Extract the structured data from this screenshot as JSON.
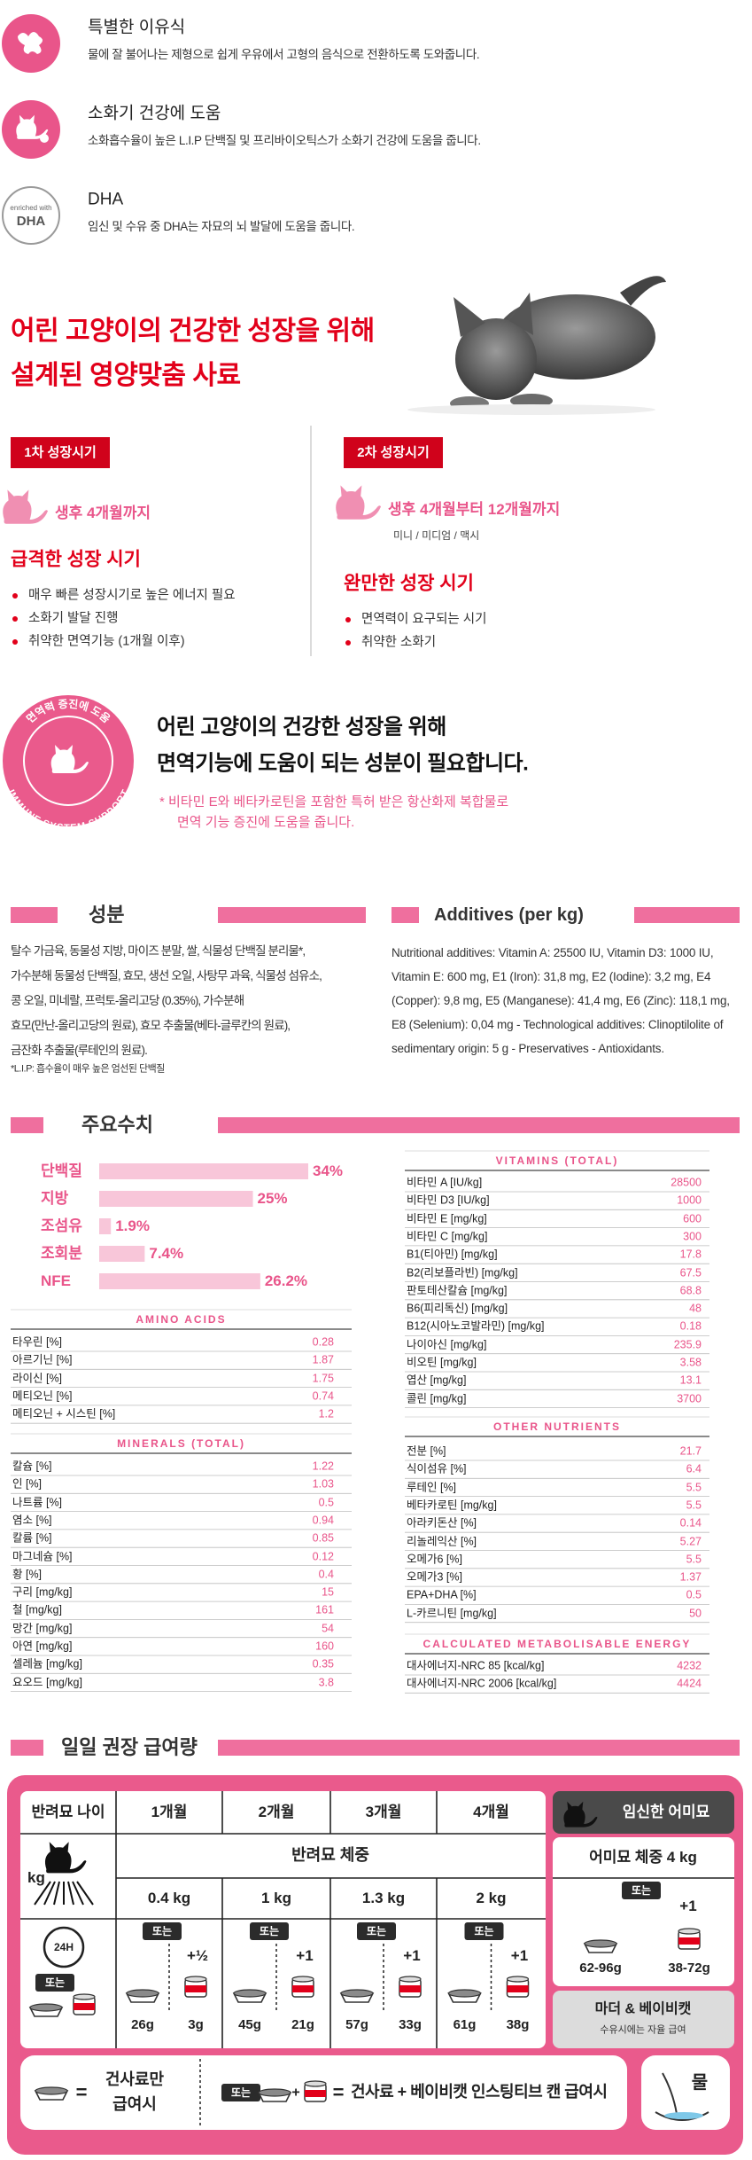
{
  "features": [
    {
      "title": "특별한 이유식",
      "description": "물에 잘 불어나는 제형으로 쉽게 우유에서 고형의 음식으로 전환하도록 도와줍니다."
    },
    {
      "title": "소화기 건강에 도움",
      "description": "소화흡수율이 높은 L.I.P 단백질 및 프리바이오틱스가 소화기 건강에 도움을 줍니다."
    },
    {
      "title": "DHA",
      "description": "임신 및 수유 중 DHA는 자묘의 뇌 발달에 도움을 줍니다.",
      "icon_caption": "enriched with",
      "icon_label": "DHA"
    }
  ],
  "growth": {
    "title_lines": [
      "어린 고양이의 건강한 성장을 위해",
      "설계된 영양맞춤 사료"
    ],
    "stages": [
      {
        "badge": "1차 성장시기",
        "age": "생후 4개월까지",
        "title": "급격한 성장 시기",
        "bullets": [
          "매우 빠른 성장시기로 높은 에너지 필요",
          "소화기 발달 진행",
          "취약한 면역기능 (1개월 이후)"
        ]
      },
      {
        "badge": "2차 성장시기",
        "age": "생후 4개월부터 12개월까지",
        "sub": "미니 / 미디엄 / 맥시",
        "title": "완만한 성장 시기",
        "bullets": [
          "면역력이 요구되는 시기",
          "취약한 소화기"
        ]
      }
    ]
  },
  "immune": {
    "badge_top": "면역력 증진에 도움",
    "badge_bottom": "IMMUNE SYSTEM SUPPORT",
    "heading_lines": [
      "어린 고양이의 건강한 성장을 위해",
      "면역기능에 도움이 되는 성분이 필요합니다."
    ],
    "note_lines": [
      "* 비타민 E와 베타카로틴을 포함한 특허 받은 항산화제 복합물로",
      "면역 기능 증진에 도움을 줍니다."
    ]
  },
  "ingredients": {
    "title": "성분",
    "lines": [
      "탈수 가금육, 동물성 지방, 마이즈 분말, 쌀, 식물성 단백질 분리물*,",
      "가수분해 동물성 단백질, 효모, 생선 오일, 사탕무 과육, 식물성 섬유소,",
      "콩 오일, 미네랄, 프럭토-올리고당 (0.35%), 가수분해",
      "효모(만난-올리고당의 원료), 효모 추출물(베타-글루칸의 원료),",
      "금잔화 추출물(루테인의 원료)."
    ],
    "footnote": "*L.I.P: 흡수율이 매우 높은 엄선된 단백질"
  },
  "additives": {
    "title": "Additives (per kg)",
    "text": "Nutritional additives: Vitamin A: 25500 IU, Vitamin D3: 1000 IU, Vitamin E: 600 mg, E1 (Iron): 31,8 mg, E2 (Iodine): 3,2 mg, E4 (Copper): 9,8 mg, E5 (Manganese): 41,4 mg, E6 (Zinc): 118,1 mg, E8 (Selenium): 0,04 mg - Technological additives: Clinoptilolite of sedimentary origin: 5 g - Preservatives - Antioxidants."
  },
  "analysis": {
    "title": "주요수치",
    "main": [
      {
        "name": "단백질",
        "value": 34,
        "label": "34%"
      },
      {
        "name": "지방",
        "value": 25,
        "label": "25%"
      },
      {
        "name": "조섬유",
        "value": 1.9,
        "label": "1.9%"
      },
      {
        "name": "조회분",
        "value": 7.4,
        "label": "7.4%"
      },
      {
        "name": "NFE",
        "value": 26.2,
        "label": "26.2%"
      }
    ],
    "tables": [
      {
        "title": "AMINO ACIDS",
        "rows": [
          [
            "타우린 [%]",
            "0.28"
          ],
          [
            "아르기닌 [%]",
            "1.87"
          ],
          [
            "라이신 [%]",
            "1.75"
          ],
          [
            "메티오닌 [%]",
            "0.74"
          ],
          [
            "메티오닌 + 시스틴 [%]",
            "1.2"
          ]
        ]
      },
      {
        "title": "MINERALS (TOTAL)",
        "rows": [
          [
            "칼슘 [%]",
            "1.22"
          ],
          [
            "인 [%]",
            "1.03"
          ],
          [
            "나트륨 [%]",
            "0.5"
          ],
          [
            "염소 [%]",
            "0.94"
          ],
          [
            "칼륨 [%]",
            "0.85"
          ],
          [
            "마그네슘 [%]",
            "0.12"
          ],
          [
            "황 [%]",
            "0.4"
          ],
          [
            "구리 [mg/kg]",
            "15"
          ],
          [
            "철 [mg/kg]",
            "161"
          ],
          [
            "망간 [mg/kg]",
            "54"
          ],
          [
            "아연 [mg/kg]",
            "160"
          ],
          [
            "셀레늄 [mg/kg]",
            "0.35"
          ],
          [
            "요오드 [mg/kg]",
            "3.8"
          ]
        ]
      },
      {
        "title": "VITAMINS (TOTAL)",
        "rows": [
          [
            "비타민 A [IU/kg]",
            "28500"
          ],
          [
            "비타민 D3 [IU/kg]",
            "1000"
          ],
          [
            "비타민 E [mg/kg]",
            "600"
          ],
          [
            "비타민 C [mg/kg]",
            "300"
          ],
          [
            "B1(티아민) [mg/kg]",
            "17.8"
          ],
          [
            "B2(리보플라빈) [mg/kg]",
            "67.5"
          ],
          [
            "판토테산칼슘 [mg/kg]",
            "68.8"
          ],
          [
            "B6(피리독신) [mg/kg]",
            "48"
          ],
          [
            "B12(시아노코발라민) [mg/kg]",
            "0.18"
          ],
          [
            "나이아신 [mg/kg]",
            "235.9"
          ],
          [
            "비오틴 [mg/kg]",
            "3.58"
          ],
          [
            "엽산 [mg/kg]",
            "13.1"
          ],
          [
            "콜린 [mg/kg]",
            "3700"
          ]
        ]
      },
      {
        "title": "OTHER NUTRIENTS",
        "rows": [
          [
            "전분 [%]",
            "21.7"
          ],
          [
            "식이섬유 [%]",
            "6.4"
          ],
          [
            "루테인 [%]",
            "5.5"
          ],
          [
            "베타카로틴 [mg/kg]",
            "5.5"
          ],
          [
            "아라키돈산 [%]",
            "0.14"
          ],
          [
            "리놀레익산 [%]",
            "5.27"
          ],
          [
            "오메가6 [%]",
            "5.5"
          ],
          [
            "오메가3 [%]",
            "1.37"
          ],
          [
            "EPA+DHA [%]",
            "0.5"
          ],
          [
            "L-카르니틴 [mg/kg]",
            "50"
          ]
        ]
      },
      {
        "title": "CALCULATED METABOLISABLE ENERGY",
        "rows": [
          [
            "대사에너지-NRC 85 [kcal/kg]",
            "4232"
          ],
          [
            "대사에너지-NRC 2006 [kcal/kg]",
            "4424"
          ]
        ]
      }
    ]
  },
  "feeding": {
    "title": "일일 권장 급여량",
    "age_label": "반려묘 나이",
    "ages": [
      "1개월",
      "2개월",
      "3개월",
      "4개월"
    ],
    "weight_label": "반려묘 체중",
    "weights": [
      "0.4 kg",
      "1 kg",
      "1.3 kg",
      "2 kg"
    ],
    "kg": "kg",
    "clock": "24H",
    "or": "또는",
    "cans": [
      "+½",
      "+1",
      "+1",
      "+1"
    ],
    "dry": [
      "26g",
      "45g",
      "57g",
      "61g"
    ],
    "wet": [
      "3g",
      "21g",
      "33g",
      "38g"
    ],
    "mother": {
      "title": "임신한 어미묘",
      "weight": "어미묘 체중 4 kg",
      "can": "+1",
      "dry": "62-96g",
      "wet": "38-72g",
      "product": "마더 & 베이비캣",
      "note": "수유시에는 자율 급여"
    },
    "legend": {
      "equals": "=",
      "plus": "+",
      "dry_only_lines": [
        "건사료만",
        "급여시"
      ],
      "mixed": "건사료 + 베이비캣 인스팅티브 캔 급여시",
      "water": "물"
    }
  }
}
